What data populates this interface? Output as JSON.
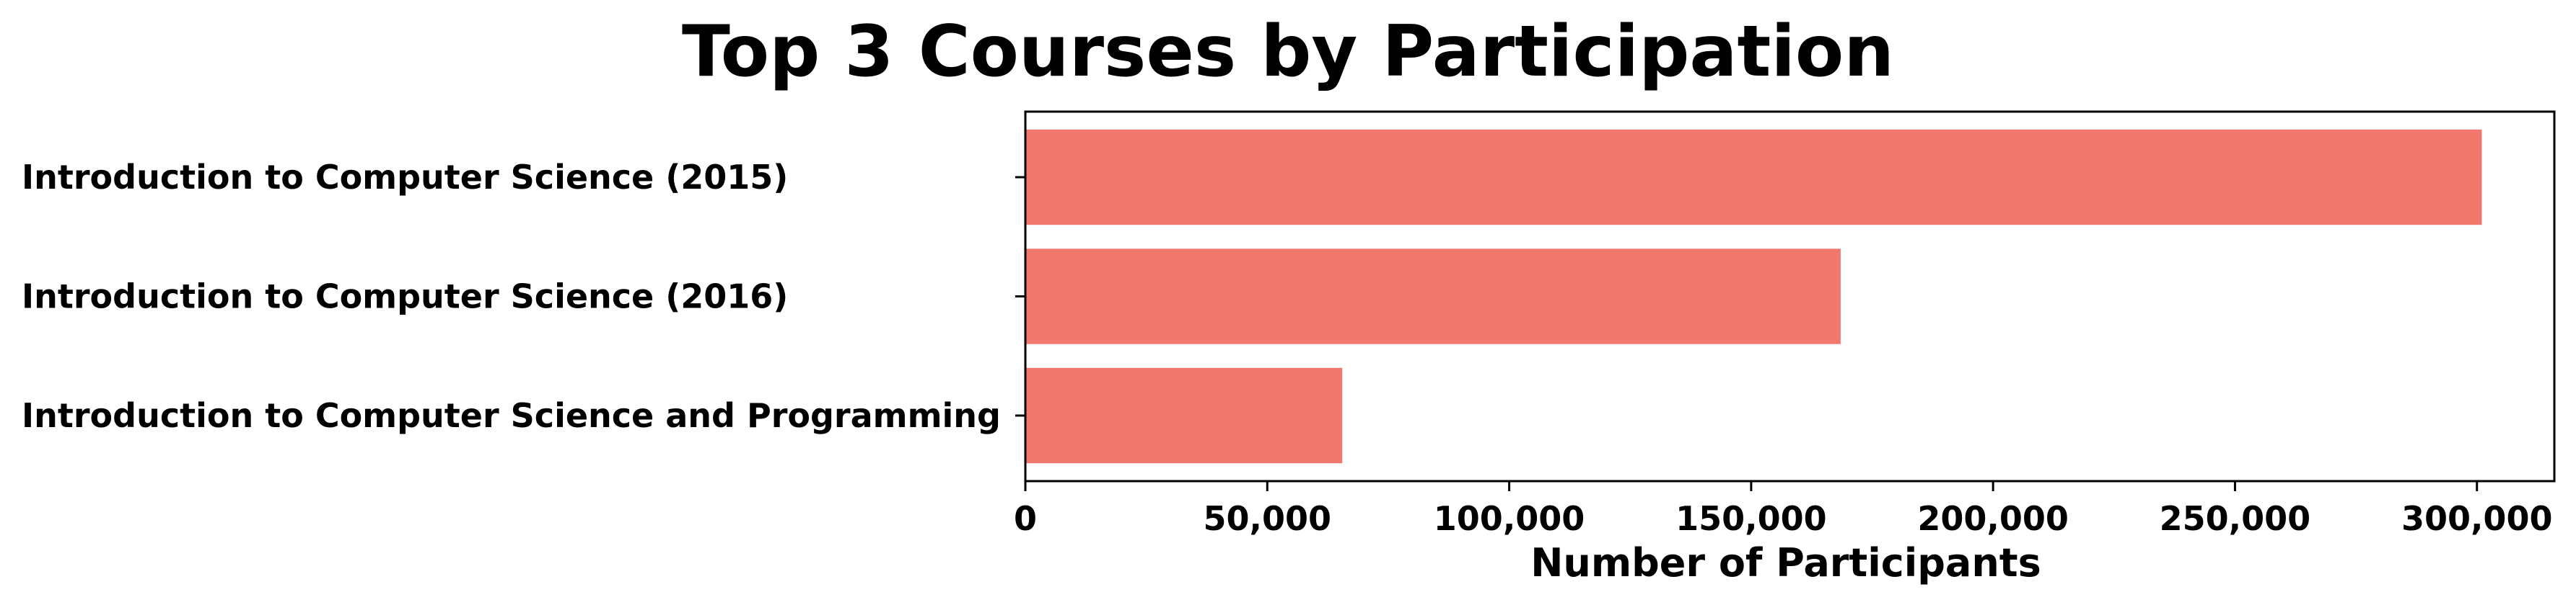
{
  "chart_data": {
    "type": "bar",
    "orientation": "horizontal",
    "title": "Top 3 Courses by Participation",
    "xlabel": "Number of Participants",
    "ylabel": "",
    "categories": [
      "Introduction to Computer Science (2015)",
      "Introduction to Computer Science (2016)",
      "Introduction to Computer Science and Programming"
    ],
    "values": [
      301000,
      168500,
      65500
    ],
    "xlim": [
      0,
      316000
    ],
    "xticks": [
      0,
      50000,
      100000,
      150000,
      200000,
      250000,
      300000
    ],
    "xtick_labels": [
      "0",
      "50,000",
      "100,000",
      "150,000",
      "200,000",
      "250,000",
      "300,000"
    ],
    "bar_color": "#f2776d",
    "grid": false,
    "legend": "none"
  }
}
